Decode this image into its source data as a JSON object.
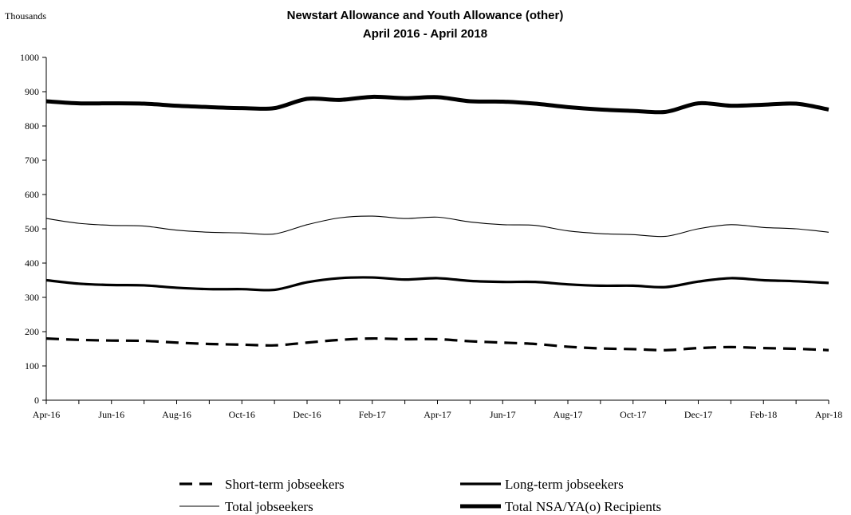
{
  "chart_data": {
    "type": "line",
    "title": "Newstart Allowance and Youth Allowance (other)",
    "subtitle": "April 2016 - April 2018",
    "unit_label": "Thousands",
    "ylim": [
      0,
      1000
    ],
    "y_ticks": [
      "0",
      "100",
      "200",
      "300",
      "400",
      "500",
      "600",
      "700",
      "800",
      "900",
      "1000"
    ],
    "x": [
      "Apr-16",
      "May-16",
      "Jun-16",
      "Jul-16",
      "Aug-16",
      "Sep-16",
      "Oct-16",
      "Nov-16",
      "Dec-16",
      "Jan-17",
      "Feb-17",
      "Mar-17",
      "Apr-17",
      "May-17",
      "Jun-17",
      "Jul-17",
      "Aug-17",
      "Sep-17",
      "Oct-17",
      "Nov-17",
      "Dec-17",
      "Jan-18",
      "Feb-18",
      "Mar-18",
      "Apr-18"
    ],
    "x_tick_labels": [
      "Apr-16",
      "Jun-16",
      "Aug-16",
      "Oct-16",
      "Dec-16",
      "Feb-17",
      "Apr-17",
      "Jun-17",
      "Aug-17",
      "Oct-17",
      "Dec-17",
      "Feb-18",
      "Apr-18"
    ],
    "grid": false,
    "legend_position": "bottom",
    "series": [
      {
        "name": "Short-term jobseekers",
        "style": "dashed",
        "color": "#000000",
        "values": [
          180,
          176,
          174,
          173,
          168,
          164,
          162,
          160,
          168,
          176,
          180,
          178,
          178,
          172,
          168,
          164,
          156,
          151,
          149,
          146,
          152,
          155,
          152,
          150,
          146
        ]
      },
      {
        "name": "Long-term jobseekers",
        "style": "solid-medium",
        "color": "#000000",
        "values": [
          350,
          340,
          336,
          335,
          328,
          324,
          324,
          322,
          344,
          356,
          358,
          352,
          356,
          348,
          345,
          345,
          338,
          334,
          334,
          330,
          346,
          356,
          350,
          347,
          342
        ]
      },
      {
        "name": "Total jobseekers",
        "style": "solid-thin",
        "color": "#000000",
        "values": [
          530,
          516,
          510,
          508,
          496,
          490,
          488,
          485,
          512,
          532,
          537,
          530,
          534,
          520,
          512,
          510,
          494,
          486,
          483,
          478,
          500,
          512,
          504,
          500,
          490
        ]
      },
      {
        "name": "Total NSA/YA(o) Recipients",
        "style": "solid-thick",
        "color": "#000000",
        "values": [
          872,
          866,
          866,
          865,
          859,
          855,
          852,
          852,
          879,
          876,
          885,
          881,
          884,
          872,
          871,
          865,
          855,
          848,
          844,
          841,
          866,
          859,
          862,
          865,
          848
        ]
      }
    ]
  }
}
